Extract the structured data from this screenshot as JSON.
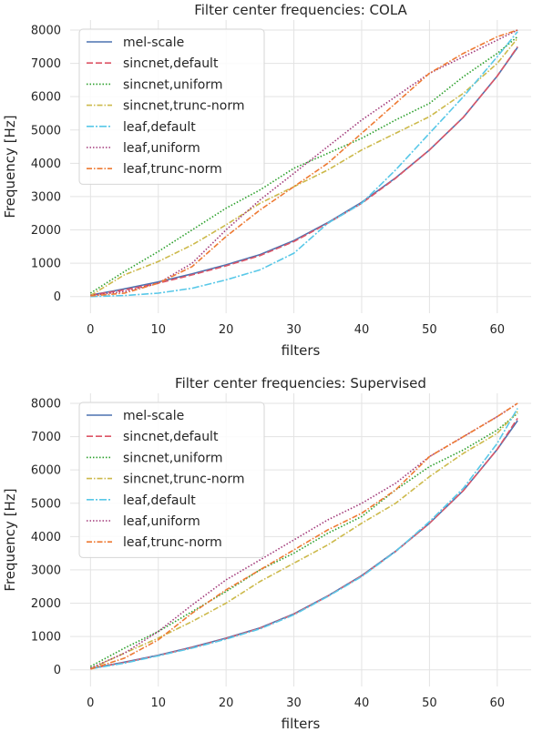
{
  "chart_data": [
    {
      "type": "line",
      "title": "Filter center frequencies: COLA",
      "xlabel": "filters",
      "ylabel": "Frequency [Hz]",
      "xlim": [
        -3,
        65
      ],
      "ylim": [
        -500,
        8300
      ],
      "xticks": [
        0,
        10,
        20,
        30,
        40,
        50,
        60
      ],
      "yticks": [
        0,
        1000,
        2000,
        3000,
        4000,
        5000,
        6000,
        7000,
        8000
      ],
      "grid": true,
      "legend_position": "top-left",
      "x": [
        0,
        5,
        10,
        15,
        20,
        25,
        30,
        35,
        40,
        45,
        50,
        55,
        60,
        63
      ],
      "series": [
        {
          "name": "mel-scale",
          "color": "#4c72b0",
          "dash": "",
          "values": [
            40,
            230,
            440,
            680,
            950,
            1260,
            1680,
            2220,
            2830,
            3560,
            4400,
            5380,
            6620,
            7480
          ]
        },
        {
          "name": "sincnet,default",
          "color": "#dd5566",
          "dash": "7,3",
          "values": [
            40,
            200,
            400,
            650,
            920,
            1230,
            1650,
            2200,
            2800,
            3550,
            4400,
            5380,
            6620,
            7500
          ]
        },
        {
          "name": "sincnet,uniform",
          "color": "#2ca02c",
          "dash": "1.5,2",
          "values": [
            100,
            750,
            1350,
            2000,
            2650,
            3200,
            3850,
            4300,
            4750,
            5300,
            5800,
            6600,
            7300,
            7800
          ]
        },
        {
          "name": "sincnet,trunc-norm",
          "color": "#ccb94a",
          "dash": "6,2,1.5,2",
          "values": [
            30,
            650,
            1050,
            1550,
            2150,
            2800,
            3300,
            3800,
            4400,
            4900,
            5400,
            6100,
            7000,
            7750
          ]
        },
        {
          "name": "leaf,default",
          "color": "#58c8e8",
          "dash": "8,2,2,2",
          "values": [
            0,
            30,
            100,
            250,
            500,
            800,
            1300,
            2200,
            2800,
            3800,
            4900,
            6000,
            7200,
            7950
          ]
        },
        {
          "name": "leaf,uniform",
          "color": "#a23a7a",
          "dash": "1.5,2",
          "values": [
            30,
            150,
            400,
            1000,
            2000,
            2900,
            3700,
            4500,
            5300,
            6000,
            6700,
            7200,
            7700,
            8000
          ]
        },
        {
          "name": "leaf,trunc-norm",
          "color": "#ee7a33",
          "dash": "6,2,1.5,2",
          "values": [
            20,
            100,
            400,
            900,
            1800,
            2600,
            3300,
            4000,
            4900,
            5800,
            6700,
            7300,
            7800,
            8000
          ]
        }
      ]
    },
    {
      "type": "line",
      "title": "Filter center frequencies: Supervised",
      "xlabel": "filters",
      "ylabel": "Frequency [Hz]",
      "xlim": [
        -3,
        65
      ],
      "ylim": [
        -500,
        8300
      ],
      "xticks": [
        0,
        10,
        20,
        30,
        40,
        50,
        60
      ],
      "yticks": [
        0,
        1000,
        2000,
        3000,
        4000,
        5000,
        6000,
        7000,
        8000
      ],
      "grid": true,
      "legend_position": "top-left",
      "x": [
        0,
        5,
        10,
        15,
        20,
        25,
        30,
        35,
        40,
        45,
        50,
        55,
        60,
        63
      ],
      "series": [
        {
          "name": "mel-scale",
          "color": "#4c72b0",
          "dash": "",
          "values": [
            40,
            230,
            440,
            680,
            950,
            1260,
            1680,
            2220,
            2830,
            3560,
            4400,
            5380,
            6620,
            7480
          ]
        },
        {
          "name": "sincnet,default",
          "color": "#dd5566",
          "dash": "7,3",
          "values": [
            40,
            220,
            430,
            670,
            940,
            1250,
            1670,
            2210,
            2820,
            3550,
            4400,
            5380,
            6620,
            7550
          ]
        },
        {
          "name": "sincnet,uniform",
          "color": "#2ca02c",
          "dash": "1.5,2",
          "values": [
            100,
            650,
            1150,
            1750,
            2350,
            3000,
            3500,
            4100,
            4600,
            5400,
            6100,
            6600,
            7200,
            7700
          ]
        },
        {
          "name": "sincnet,trunc-norm",
          "color": "#ccb94a",
          "dash": "6,2,1.5,2",
          "values": [
            30,
            500,
            950,
            1450,
            2000,
            2650,
            3200,
            3750,
            4400,
            5000,
            5800,
            6500,
            7100,
            7750
          ]
        },
        {
          "name": "leaf,default",
          "color": "#58c8e8",
          "dash": "8,2,2,2",
          "values": [
            30,
            200,
            420,
            650,
            920,
            1230,
            1650,
            2200,
            2800,
            3550,
            4450,
            5450,
            6800,
            7850
          ]
        },
        {
          "name": "leaf,uniform",
          "color": "#a23a7a",
          "dash": "1.5,2",
          "values": [
            50,
            500,
            1150,
            1950,
            2700,
            3300,
            3900,
            4500,
            5000,
            5600,
            6400,
            7000,
            7600,
            8000
          ]
        },
        {
          "name": "leaf,trunc-norm",
          "color": "#ee7a33",
          "dash": "6,2,1.5,2",
          "values": [
            20,
            350,
            900,
            1700,
            2400,
            3000,
            3600,
            4200,
            4700,
            5400,
            6400,
            7000,
            7600,
            8000
          ]
        }
      ]
    }
  ]
}
